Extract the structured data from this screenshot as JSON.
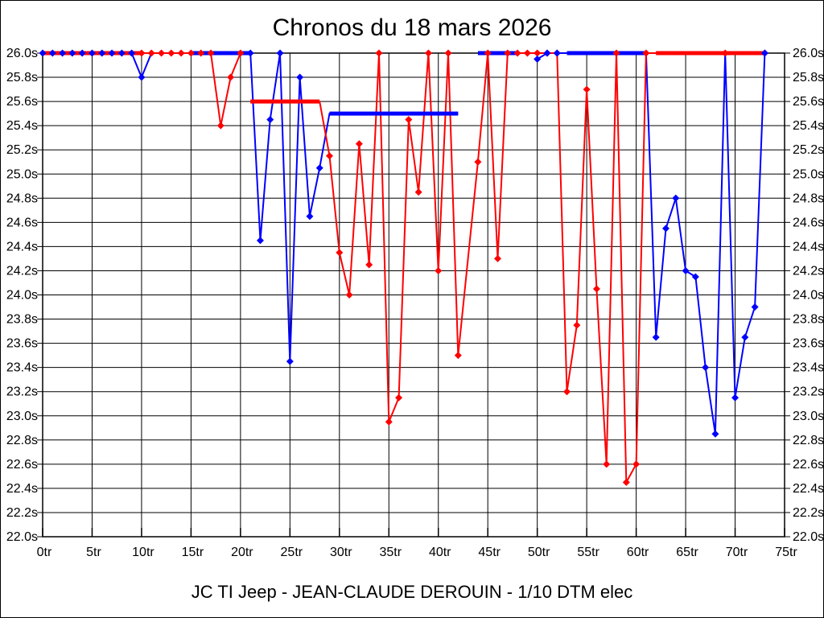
{
  "header": {
    "title": "Chronos du 18 mars 2026",
    "caption": "JC TI Jeep - JEAN-CLAUDE DEROUIN - 1/10 DTM elec"
  },
  "colors": {
    "red_series": "#FF0000",
    "blue_series": "#0000FF",
    "grid": "#000000",
    "background": "#FFFFFF",
    "text": "#000000"
  },
  "chart_data": {
    "type": "line",
    "title": "Chronos du 18 mars 2026",
    "caption": "JC TI Jeep - JEAN-CLAUDE DEROUIN - 1/10 DTM elec",
    "xlabel": "",
    "ylabel": "",
    "x_unit": "tr",
    "y_unit": "s",
    "xlim": [
      0,
      75
    ],
    "ylim": [
      22.0,
      26.0
    ],
    "grid": true,
    "legend_position": "none",
    "x_ticks": [
      "0tr",
      "5tr",
      "10tr",
      "15tr",
      "20tr",
      "25tr",
      "30tr",
      "35tr",
      "40tr",
      "45tr",
      "50tr",
      "55tr",
      "60tr",
      "65tr",
      "70tr",
      "75tr"
    ],
    "y_ticks": [
      "26.0s",
      "25.8s",
      "25.6s",
      "25.4s",
      "25.2s",
      "25.0s",
      "24.8s",
      "24.6s",
      "24.4s",
      "24.2s",
      "24.0s",
      "23.8s",
      "23.6s",
      "23.4s",
      "23.2s",
      "23.0s",
      "22.8s",
      "22.6s",
      "22.4s",
      "22.2s",
      "22.0s"
    ],
    "series": [
      {
        "name": "driver-red",
        "color": "#FF0000",
        "lines": [
          [
            [
              0,
              26
            ],
            [
              17,
              26
            ],
            [
              18,
              25.4
            ],
            [
              19,
              25.8
            ],
            [
              20,
              26
            ]
          ],
          [
            [
              28,
              25.6
            ],
            [
              29,
              25.15
            ],
            [
              30,
              24.35
            ],
            [
              31,
              24.0
            ],
            [
              32,
              25.25
            ],
            [
              33,
              24.25
            ],
            [
              34,
              26
            ],
            [
              35,
              22.95
            ],
            [
              36,
              23.15
            ],
            [
              37,
              25.45
            ],
            [
              38,
              24.85
            ],
            [
              39,
              26
            ],
            [
              40,
              24.2
            ],
            [
              41,
              26
            ],
            [
              42,
              23.5
            ],
            [
              44,
              25.1
            ],
            [
              45,
              26
            ],
            [
              46,
              24.3
            ],
            [
              47,
              26
            ],
            [
              52,
              26
            ],
            [
              53,
              23.2
            ],
            [
              54,
              23.75
            ],
            [
              55,
              25.7
            ],
            [
              56,
              24.05
            ],
            [
              57,
              22.6
            ],
            [
              58,
              26
            ],
            [
              59,
              22.45
            ],
            [
              60,
              22.6
            ],
            [
              61,
              26
            ],
            [
              62,
              26
            ],
            [
              73,
              26
            ]
          ]
        ],
        "bars": [
          [
            0,
            10,
            26
          ],
          [
            21,
            28,
            25.6
          ],
          [
            62,
            73,
            26
          ]
        ],
        "markers": [
          [
            10,
            26
          ],
          [
            11,
            26
          ],
          [
            12,
            26
          ],
          [
            13,
            26
          ],
          [
            14,
            26
          ],
          [
            15,
            26
          ],
          [
            16,
            26
          ],
          [
            17,
            26
          ],
          [
            18,
            25.4
          ],
          [
            19,
            25.8
          ],
          [
            20,
            26
          ],
          [
            29,
            25.15
          ],
          [
            30,
            24.35
          ],
          [
            31,
            24.0
          ],
          [
            32,
            25.25
          ],
          [
            33,
            24.25
          ],
          [
            34,
            26
          ],
          [
            35,
            22.95
          ],
          [
            36,
            23.15
          ],
          [
            37,
            25.45
          ],
          [
            38,
            24.85
          ],
          [
            39,
            26
          ],
          [
            40,
            24.2
          ],
          [
            41,
            26
          ],
          [
            42,
            23.5
          ],
          [
            44,
            25.1
          ],
          [
            45,
            26
          ],
          [
            46,
            24.3
          ],
          [
            47,
            26
          ],
          [
            48,
            26
          ],
          [
            49,
            26
          ],
          [
            50,
            26
          ],
          [
            51,
            26
          ],
          [
            52,
            26
          ],
          [
            53,
            23.2
          ],
          [
            54,
            23.75
          ],
          [
            55,
            25.7
          ],
          [
            56,
            24.05
          ],
          [
            57,
            22.6
          ],
          [
            58,
            26
          ],
          [
            59,
            22.45
          ],
          [
            60,
            22.6
          ],
          [
            61,
            26
          ],
          [
            69,
            26
          ],
          [
            73,
            26
          ]
        ]
      },
      {
        "name": "driver-blue",
        "color": "#0000FF",
        "lines": [
          [
            [
              0,
              26
            ],
            [
              9,
              26
            ],
            [
              10,
              25.8
            ],
            [
              11,
              26
            ],
            [
              21,
              26
            ],
            [
              22,
              24.45
            ],
            [
              23,
              25.45
            ],
            [
              24,
              26
            ],
            [
              25,
              23.45
            ],
            [
              26,
              25.8
            ],
            [
              27,
              24.65
            ],
            [
              28,
              25.05
            ],
            [
              29,
              25.5
            ],
            [
              42,
              25.5
            ]
          ],
          [
            [
              44,
              26
            ],
            [
              48,
              26
            ]
          ],
          [
            [
              50,
              25.95
            ],
            [
              51,
              26
            ],
            [
              61,
              26
            ],
            [
              62,
              23.65
            ],
            [
              63,
              24.55
            ],
            [
              64,
              24.8
            ],
            [
              65,
              24.2
            ],
            [
              66,
              24.15
            ],
            [
              67,
              23.4
            ],
            [
              68,
              22.85
            ],
            [
              69,
              26
            ],
            [
              70,
              23.15
            ],
            [
              71,
              23.65
            ],
            [
              72,
              23.9
            ],
            [
              73,
              26
            ]
          ]
        ],
        "bars": [
          [
            15,
            21,
            26
          ],
          [
            29,
            42,
            25.5
          ],
          [
            44,
            48,
            26
          ],
          [
            53,
            61,
            26
          ]
        ],
        "markers": [
          [
            0,
            26
          ],
          [
            1,
            26
          ],
          [
            2,
            26
          ],
          [
            3,
            26
          ],
          [
            4,
            26
          ],
          [
            5,
            26
          ],
          [
            6,
            26
          ],
          [
            7,
            26
          ],
          [
            8,
            26
          ],
          [
            9,
            26
          ],
          [
            10,
            25.8
          ],
          [
            21,
            26
          ],
          [
            22,
            24.45
          ],
          [
            23,
            25.45
          ],
          [
            24,
            26
          ],
          [
            25,
            23.45
          ],
          [
            26,
            25.8
          ],
          [
            27,
            24.65
          ],
          [
            28,
            25.05
          ],
          [
            50,
            25.95
          ],
          [
            51,
            26
          ],
          [
            52,
            26
          ],
          [
            62,
            23.65
          ],
          [
            63,
            24.55
          ],
          [
            64,
            24.8
          ],
          [
            65,
            24.2
          ],
          [
            66,
            24.15
          ],
          [
            67,
            23.4
          ],
          [
            68,
            22.85
          ],
          [
            70,
            23.15
          ],
          [
            71,
            23.65
          ],
          [
            72,
            23.9
          ],
          [
            73,
            26
          ]
        ]
      }
    ]
  }
}
